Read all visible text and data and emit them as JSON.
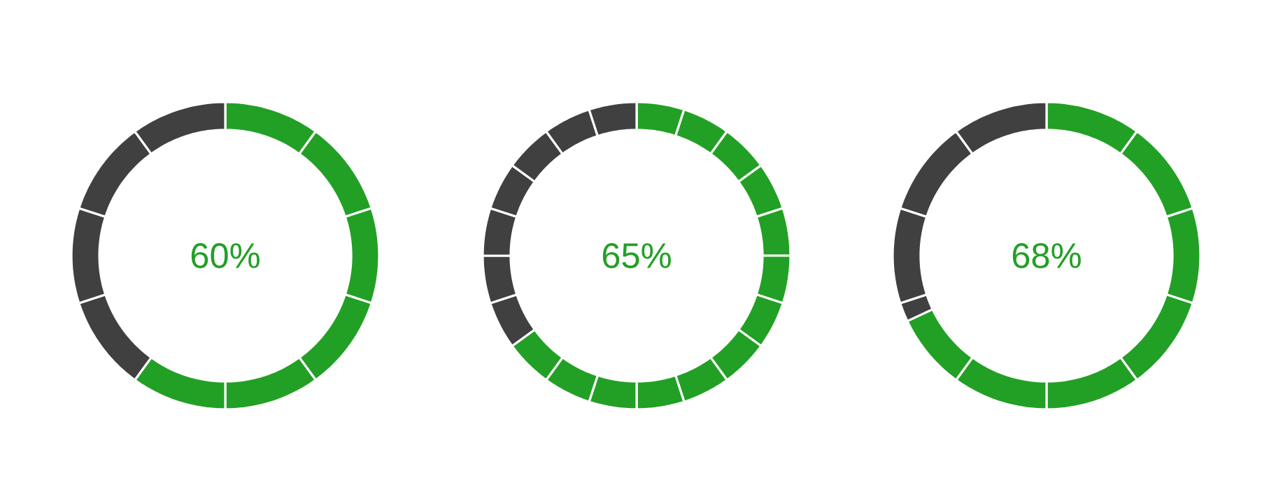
{
  "chart_data": [
    {
      "type": "donut",
      "title": "60%",
      "categories": [
        null,
        null,
        null,
        null,
        null,
        null,
        null,
        null,
        null,
        null
      ],
      "values": [
        10,
        10,
        10,
        10,
        10,
        10,
        10,
        10,
        10,
        10
      ],
      "colors": [
        "#22a025",
        "#22a025",
        "#22a025",
        "#22a025",
        "#22a025",
        "#22a025",
        "#404040",
        "#404040",
        "#404040",
        "#404040"
      ]
    },
    {
      "type": "donut",
      "title": "65%",
      "categories": [
        null,
        null,
        null,
        null,
        null,
        null,
        null,
        null,
        null,
        null,
        null,
        null,
        null,
        null,
        null,
        null,
        null,
        null,
        null,
        null
      ],
      "values": [
        5,
        5,
        5,
        5,
        5,
        5,
        5,
        5,
        5,
        5,
        5,
        5,
        5,
        5,
        5,
        5,
        5,
        5,
        5,
        5
      ],
      "colors": [
        "#22a025",
        "#22a025",
        "#22a025",
        "#22a025",
        "#22a025",
        "#22a025",
        "#22a025",
        "#22a025",
        "#22a025",
        "#22a025",
        "#22a025",
        "#22a025",
        "#22a025",
        "#404040",
        "#404040",
        "#404040",
        "#404040",
        "#404040",
        "#404040",
        "#404040"
      ]
    },
    {
      "type": "donut",
      "title": "68%",
      "categories": [
        null,
        null,
        null,
        null,
        null,
        null,
        null,
        null,
        null,
        null,
        null
      ],
      "values": [
        10,
        10,
        10,
        10,
        10,
        10,
        8,
        2,
        10,
        10,
        10
      ],
      "colors": [
        "#22a025",
        "#22a025",
        "#22a025",
        "#22a025",
        "#22a025",
        "#22a025",
        "#22a025",
        "#404040",
        "#404040",
        "#404040",
        "#404040"
      ]
    }
  ]
}
